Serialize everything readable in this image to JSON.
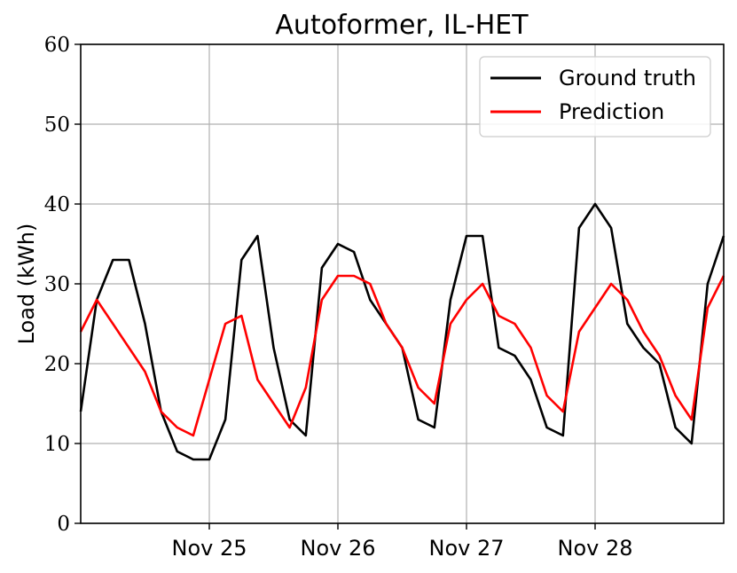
{
  "chart_data": {
    "type": "line",
    "title": "Autoformer, IL-HET",
    "xlabel": "",
    "ylabel": "Load (kWh)",
    "ylim": [
      0,
      60
    ],
    "yticks": [
      "0",
      "10",
      "20",
      "30",
      "40",
      "50",
      "60"
    ],
    "x_domain": [
      "Nov 24 00:00",
      "Nov 29 00:00"
    ],
    "xticks": [
      {
        "label": "Nov 25",
        "x": "Nov 25 00:00"
      },
      {
        "label": "Nov 26",
        "x": "Nov 26 00:00"
      },
      {
        "label": "Nov 27",
        "x": "Nov 27 00:00"
      },
      {
        "label": "Nov 28",
        "x": "Nov 28 00:00"
      }
    ],
    "grid": true,
    "legend": {
      "position": "top-right"
    },
    "series": [
      {
        "name": "Ground truth",
        "color": "#000000",
        "x": [
          "Nov 24 00:00",
          "Nov 24 03:00",
          "Nov 24 06:00",
          "Nov 24 09:00",
          "Nov 24 12:00",
          "Nov 24 15:00",
          "Nov 24 18:00",
          "Nov 24 21:00",
          "Nov 25 00:00",
          "Nov 25 03:00",
          "Nov 25 06:00",
          "Nov 25 09:00",
          "Nov 25 12:00",
          "Nov 25 15:00",
          "Nov 25 18:00",
          "Nov 25 21:00",
          "Nov 26 00:00",
          "Nov 26 03:00",
          "Nov 26 06:00",
          "Nov 26 09:00",
          "Nov 26 12:00",
          "Nov 26 15:00",
          "Nov 26 18:00",
          "Nov 26 21:00",
          "Nov 27 00:00",
          "Nov 27 03:00",
          "Nov 27 06:00",
          "Nov 27 09:00",
          "Nov 27 12:00",
          "Nov 27 15:00",
          "Nov 27 18:00",
          "Nov 27 21:00",
          "Nov 28 00:00",
          "Nov 28 03:00",
          "Nov 28 06:00",
          "Nov 28 09:00",
          "Nov 28 12:00",
          "Nov 28 15:00",
          "Nov 28 18:00",
          "Nov 28 21:00",
          "Nov 29 00:00"
        ],
        "values": [
          14,
          28,
          33,
          33,
          25,
          14,
          9,
          8,
          8,
          13,
          33,
          36,
          22,
          13,
          11,
          32,
          35,
          34,
          28,
          25,
          22,
          13,
          12,
          28,
          36,
          36,
          22,
          21,
          18,
          12,
          11,
          37,
          40,
          37,
          25,
          22,
          20,
          12,
          10,
          30,
          36
        ]
      },
      {
        "name": "Prediction",
        "color": "#ff0000",
        "x": [
          "Nov 24 00:00",
          "Nov 24 03:00",
          "Nov 24 06:00",
          "Nov 24 09:00",
          "Nov 24 12:00",
          "Nov 24 15:00",
          "Nov 24 18:00",
          "Nov 24 21:00",
          "Nov 25 00:00",
          "Nov 25 03:00",
          "Nov 25 06:00",
          "Nov 25 09:00",
          "Nov 25 12:00",
          "Nov 25 15:00",
          "Nov 25 18:00",
          "Nov 25 21:00",
          "Nov 26 00:00",
          "Nov 26 03:00",
          "Nov 26 06:00",
          "Nov 26 09:00",
          "Nov 26 12:00",
          "Nov 26 15:00",
          "Nov 26 18:00",
          "Nov 26 21:00",
          "Nov 27 00:00",
          "Nov 27 03:00",
          "Nov 27 06:00",
          "Nov 27 09:00",
          "Nov 27 12:00",
          "Nov 27 15:00",
          "Nov 27 18:00",
          "Nov 27 21:00",
          "Nov 28 00:00",
          "Nov 28 03:00",
          "Nov 28 06:00",
          "Nov 28 09:00",
          "Nov 28 12:00",
          "Nov 28 15:00",
          "Nov 28 18:00",
          "Nov 28 21:00",
          "Nov 29 00:00"
        ],
        "values": [
          24,
          28,
          25,
          22,
          19,
          14,
          12,
          11,
          18,
          25,
          26,
          18,
          15,
          12,
          17,
          28,
          31,
          31,
          30,
          25,
          22,
          17,
          15,
          25,
          28,
          30,
          26,
          25,
          22,
          16,
          14,
          24,
          27,
          30,
          28,
          24,
          21,
          16,
          13,
          27,
          31
        ]
      }
    ]
  }
}
